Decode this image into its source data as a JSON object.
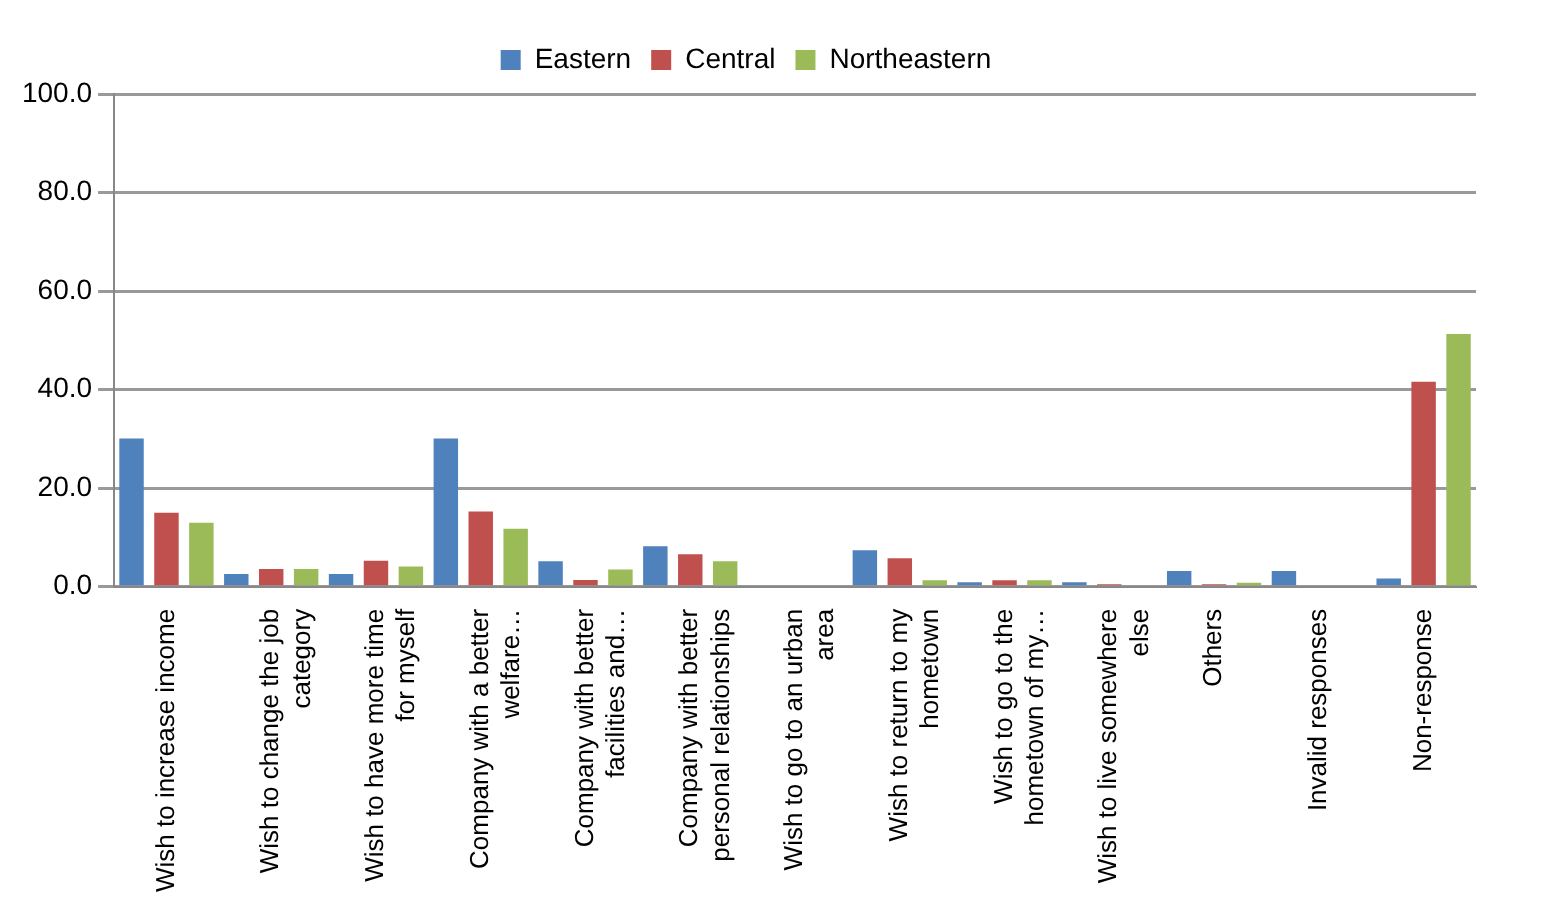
{
  "chart_data": {
    "type": "bar",
    "categories": [
      "Wish to increase income",
      "Wish to change the job category",
      "Wish to have more time for myself",
      "Company with a better welfare…",
      "Company with better facilities and…",
      "Company with better personal relationships",
      "Wish to go to an urban area",
      "Wish to return to my hometown",
      "Wish to go to the hometown of my…",
      "Wish to live somewhere else",
      "Others",
      "Invalid responses",
      "Non-response"
    ],
    "series": [
      {
        "name": "Eastern",
        "color": "#4f81bd",
        "values": [
          30.1,
          2.6,
          2.6,
          30.1,
          5.2,
          8.2,
          0,
          7.4,
          0.9,
          0.9,
          3.2,
          3.2,
          1.7
        ]
      },
      {
        "name": "Central",
        "color": "#c0504d",
        "values": [
          15.0,
          3.6,
          5.3,
          15.3,
          1.4,
          6.6,
          0,
          5.8,
          1.3,
          0.5,
          0.5,
          0,
          41.6
        ]
      },
      {
        "name": "Northeastern",
        "color": "#9bbb59",
        "values": [
          13.0,
          3.6,
          4.1,
          11.8,
          3.5,
          5.2,
          0,
          1.3,
          1.3,
          0,
          0.8,
          0,
          51.3
        ]
      }
    ],
    "ylim": [
      0,
      100
    ],
    "yticks": [
      {
        "value": 0,
        "label": "0.0"
      },
      {
        "value": 20,
        "label": "20.0"
      },
      {
        "value": 40,
        "label": "40.0"
      },
      {
        "value": 60,
        "label": "60.0"
      },
      {
        "value": 80,
        "label": "80.0"
      },
      {
        "value": 100,
        "label": "100.0"
      }
    ],
    "grid": "y",
    "legend": "top"
  }
}
